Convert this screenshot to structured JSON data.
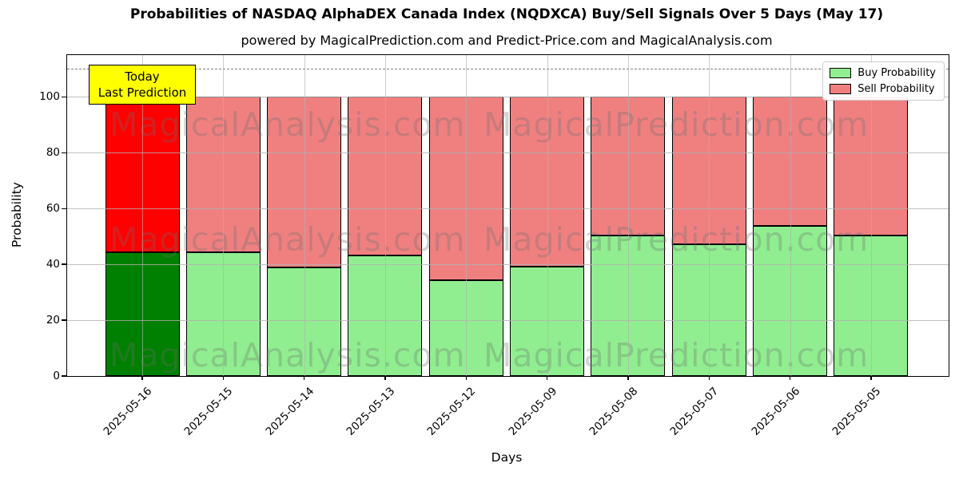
{
  "page": {
    "title": "Probabilities of NASDAQ AlphaDEX Canada Index (NQDXCA) Buy/Sell Signals Over 5 Days (May 17)",
    "subtitle": "powered by MagicalPrediction.com and Predict-Price.com and MagicalAnalysis.com"
  },
  "axes": {
    "ylabel": "Probability",
    "xlabel": "Days",
    "yticks": [
      0,
      20,
      40,
      60,
      80,
      100
    ]
  },
  "legend": {
    "items": [
      {
        "label": "Buy Probability",
        "color": "#90ee90"
      },
      {
        "label": "Sell Probability",
        "color": "#f08080"
      }
    ]
  },
  "annotation": {
    "line1": "Today",
    "line2": "Last Prediction",
    "bg_color": "#ffff00"
  },
  "watermark": {
    "left_text": "MagicalAnalysis.com",
    "right_text": "MagicalPrediction.com"
  },
  "chart_data": {
    "type": "bar",
    "stacked": true,
    "title": "Probabilities of NASDAQ AlphaDEX Canada Index (NQDXCA) Buy/Sell Signals Over 5 Days (May 17)",
    "xlabel": "Days",
    "ylabel": "Probability",
    "ylim": [
      0,
      115
    ],
    "threshold_dashed_line_y": 110,
    "grid": true,
    "legend_position": "upper right",
    "categories": [
      "2025-05-16",
      "2025-05-15",
      "2025-05-14",
      "2025-05-13",
      "2025-05-12",
      "2025-05-09",
      "2025-05-08",
      "2025-05-07",
      "2025-05-06",
      "2025-05-05"
    ],
    "series": [
      {
        "name": "Buy Probability",
        "color": "#90ee90",
        "values": [
          44,
          44,
          38.5,
          43,
          34,
          39,
          50,
          47,
          53.5,
          50
        ]
      },
      {
        "name": "Sell Probability",
        "color": "#f08080",
        "values": [
          56,
          56,
          61.5,
          57,
          66,
          61,
          50,
          53,
          46.5,
          50
        ]
      }
    ],
    "highlight": {
      "index": 0,
      "label": "Today Last Prediction",
      "buy_color": "#008000",
      "sell_color": "#ff0000"
    }
  }
}
